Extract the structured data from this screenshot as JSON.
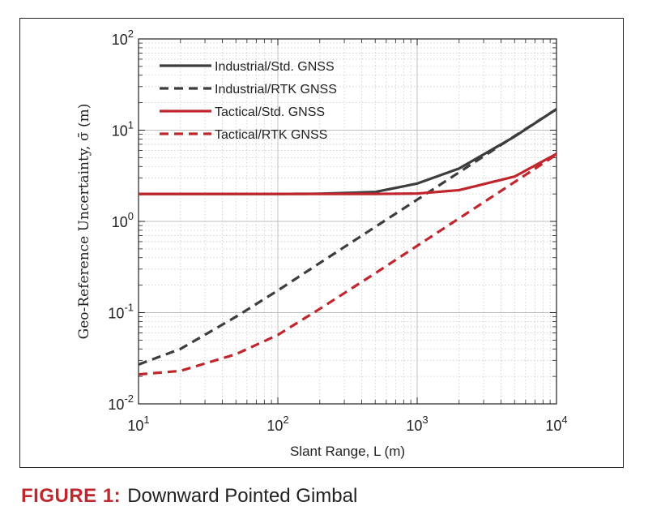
{
  "figure": {
    "label": "FIGURE 1:",
    "title": "Downward Pointed Gimbal"
  },
  "colors": {
    "industrial": "#3d3d3d",
    "tactical": "#c0272d",
    "caption_label": "#c0272d"
  },
  "chart_data": {
    "type": "line",
    "title": "",
    "xlabel": "Slant Range, L (m)",
    "ylabel": "Geo-Reference Uncertainty, σ̄ (m)",
    "xscale": "log",
    "yscale": "log",
    "xlim": [
      10,
      10000
    ],
    "ylim": [
      0.01,
      100
    ],
    "grid": true,
    "legend_position": "top-left",
    "x_ticks": [
      {
        "base": "10",
        "exp": "1"
      },
      {
        "base": "10",
        "exp": "2"
      },
      {
        "base": "10",
        "exp": "3"
      },
      {
        "base": "10",
        "exp": "4"
      }
    ],
    "y_ticks": [
      {
        "base": "10",
        "exp": "-2"
      },
      {
        "base": "10",
        "exp": "-1"
      },
      {
        "base": "10",
        "exp": "0"
      },
      {
        "base": "10",
        "exp": "1"
      },
      {
        "base": "10",
        "exp": "2"
      }
    ],
    "x": [
      10,
      20,
      50,
      100,
      200,
      500,
      1000,
      2000,
      5000,
      10000
    ],
    "series": [
      {
        "name": "Industrial/Std. GNSS",
        "color": "#3d3d3d",
        "dash": "solid",
        "values": [
          2.0,
          2.0,
          2.0,
          2.0,
          2.01,
          2.1,
          2.6,
          3.8,
          8.5,
          17.0
        ]
      },
      {
        "name": "Industrial/RTK GNSS",
        "color": "#3d3d3d",
        "dash": "dashed",
        "values": [
          0.027,
          0.04,
          0.09,
          0.175,
          0.35,
          0.87,
          1.73,
          3.45,
          8.6,
          17.0
        ]
      },
      {
        "name": "Tactical/Std. GNSS",
        "color": "#c0272d",
        "dash": "solid",
        "values": [
          2.0,
          2.0,
          2.0,
          2.0,
          2.0,
          2.0,
          2.02,
          2.2,
          3.1,
          5.5
        ]
      },
      {
        "name": "Tactical/RTK GNSS",
        "color": "#c0272d",
        "dash": "dashed",
        "values": [
          0.021,
          0.023,
          0.035,
          0.057,
          0.11,
          0.27,
          0.54,
          1.08,
          2.7,
          5.4
        ]
      }
    ]
  }
}
